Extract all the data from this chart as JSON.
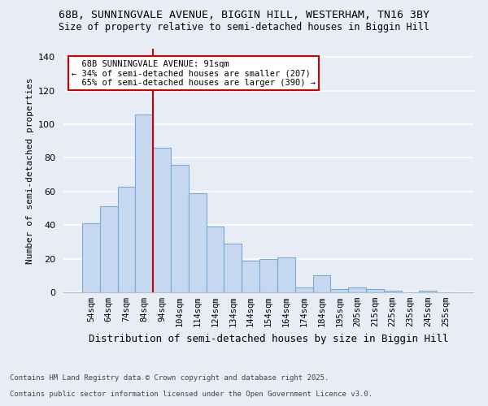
{
  "title1": "68B, SUNNINGVALE AVENUE, BIGGIN HILL, WESTERHAM, TN16 3BY",
  "title2": "Size of property relative to semi-detached houses in Biggin Hill",
  "xlabel": "Distribution of semi-detached houses by size in Biggin Hill",
  "ylabel": "Number of semi-detached properties",
  "categories": [
    "54sqm",
    "64sqm",
    "74sqm",
    "84sqm",
    "94sqm",
    "104sqm",
    "114sqm",
    "124sqm",
    "134sqm",
    "144sqm",
    "154sqm",
    "164sqm",
    "174sqm",
    "184sqm",
    "195sqm",
    "205sqm",
    "215sqm",
    "225sqm",
    "235sqm",
    "245sqm",
    "255sqm"
  ],
  "values": [
    41,
    51,
    63,
    106,
    86,
    76,
    59,
    39,
    29,
    19,
    20,
    21,
    3,
    10,
    2,
    3,
    2,
    1,
    0,
    1,
    0
  ],
  "bar_color": "#c5d8f0",
  "bar_edge_color": "#7aaad4",
  "ylim": [
    0,
    145
  ],
  "yticks": [
    0,
    20,
    40,
    60,
    80,
    100,
    120,
    140
  ],
  "property_size_label": "68B SUNNINGVALE AVENUE: 91sqm",
  "pct_smaller": 34,
  "n_smaller": 207,
  "pct_larger": 65,
  "n_larger": 390,
  "red_line_color": "#cc0000",
  "background_color": "#e8edf5",
  "grid_color": "#ffffff",
  "footer1": "Contains HM Land Registry data © Crown copyright and database right 2025.",
  "footer2": "Contains public sector information licensed under the Open Government Licence v3.0."
}
